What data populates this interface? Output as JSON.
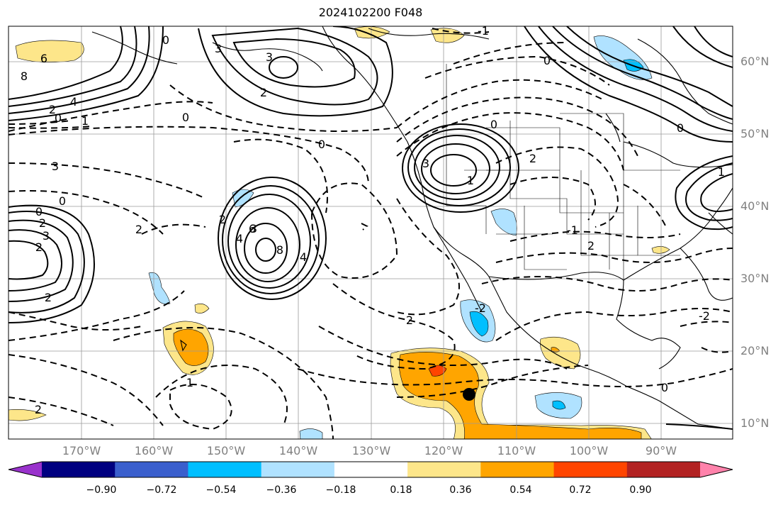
{
  "title": "2024102200 F048",
  "lat_labels": [
    "60°N",
    "50°N",
    "40°N",
    "30°N",
    "20°N",
    "10°N"
  ],
  "lon_labels": [
    "170°W",
    "160°W",
    "150°W",
    "140°W",
    "130°W",
    "120°W",
    "110°W",
    "100°W",
    "90°W"
  ],
  "colorbar": {
    "tick_labels": [
      "−0.90",
      "−0.72",
      "−0.54",
      "−0.36",
      "−0.18",
      "0.18",
      "0.36",
      "0.54",
      "0.72",
      "0.90"
    ],
    "colors": [
      "#9932cc",
      "#000080",
      "#3a5fcd",
      "#00bfff",
      "#b0e2ff",
      "#ffffff",
      "#fde68a",
      "#ffa500",
      "#ff4500",
      "#b22222",
      "#ff82ab"
    ]
  },
  "contour_labels": [
    "6",
    "8",
    "3",
    "4",
    "2",
    "0",
    "1",
    "2",
    "3",
    "0",
    "0",
    "2",
    "3",
    "2",
    "0",
    "0",
    "2",
    "3",
    "4",
    "2",
    "6",
    "8",
    "4",
    "0",
    "2",
    "3",
    "0",
    "-1",
    "0",
    "2",
    "0",
    "-2",
    "1",
    "1",
    "2",
    "-2",
    "2",
    "1",
    "-1",
    "2",
    "0",
    "3"
  ],
  "storm_marker": "tropical-storm-position"
}
